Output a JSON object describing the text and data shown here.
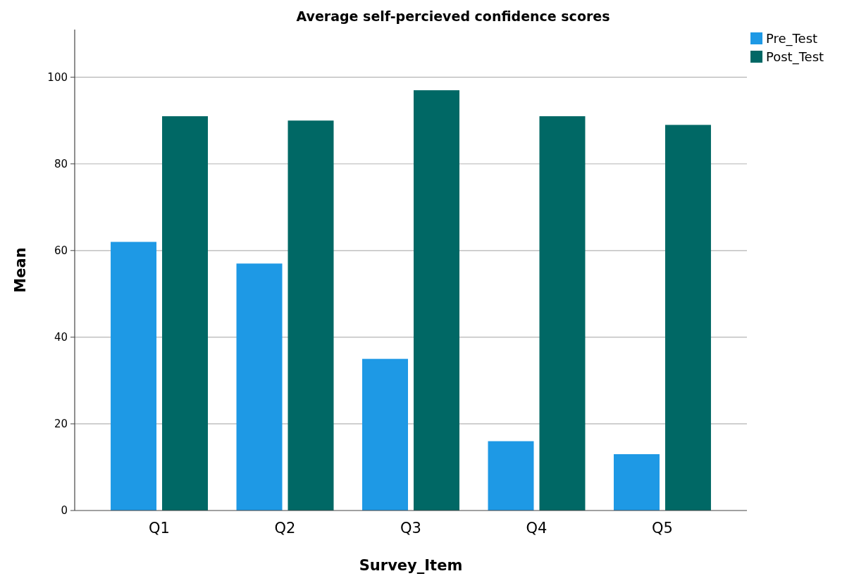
{
  "chart_data": {
    "type": "bar",
    "title": "Average self-percieved confidence scores",
    "xlabel": "Survey_Item",
    "ylabel": "Mean",
    "categories": [
      "Q1",
      "Q2",
      "Q3",
      "Q4",
      "Q5"
    ],
    "series": [
      {
        "name": "Pre_Test",
        "color": "#1e99e5",
        "values": [
          62,
          57,
          35,
          16,
          13
        ]
      },
      {
        "name": "Post_Test",
        "color": "#006865",
        "values": [
          91,
          90,
          97,
          91,
          89
        ]
      }
    ],
    "ylim": [
      0,
      111
    ],
    "yticks": [
      0,
      20,
      40,
      60,
      80,
      100
    ],
    "grid": "y",
    "legend": "top right"
  }
}
